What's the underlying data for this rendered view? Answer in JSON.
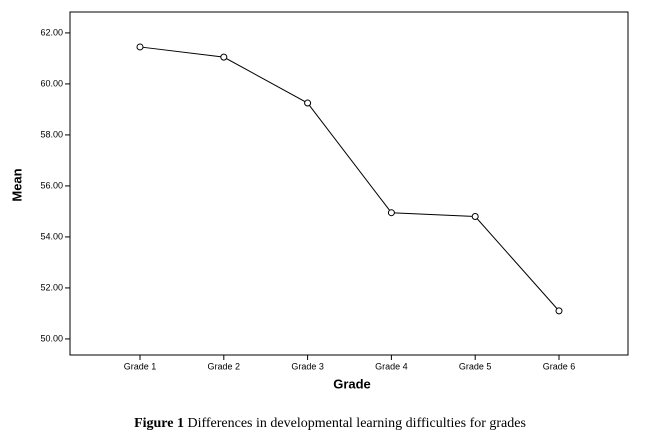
{
  "chart_data": {
    "type": "line",
    "xlabel": "Grade",
    "ylabel": "Mean",
    "categories": [
      "Grade 1",
      "Grade 2",
      "Grade 3",
      "Grade 4",
      "Grade 5",
      "Grade 6"
    ],
    "values": [
      61.45,
      61.05,
      59.25,
      54.95,
      54.8,
      51.1
    ],
    "color": "#000000",
    "ylim": [
      49.37,
      62.82
    ],
    "yticks": [
      {
        "value": 50,
        "label": "50.00"
      },
      {
        "value": 52,
        "label": "52.00"
      },
      {
        "value": 54,
        "label": "54.00"
      },
      {
        "value": 56,
        "label": "56.00"
      },
      {
        "value": 58,
        "label": "58.00"
      },
      {
        "value": 60,
        "label": "60.00"
      },
      {
        "value": 62,
        "label": "62.00"
      }
    ],
    "caption": {
      "label": "Figure 1",
      "text": "Differences in developmental learning difficulties for grades"
    }
  }
}
